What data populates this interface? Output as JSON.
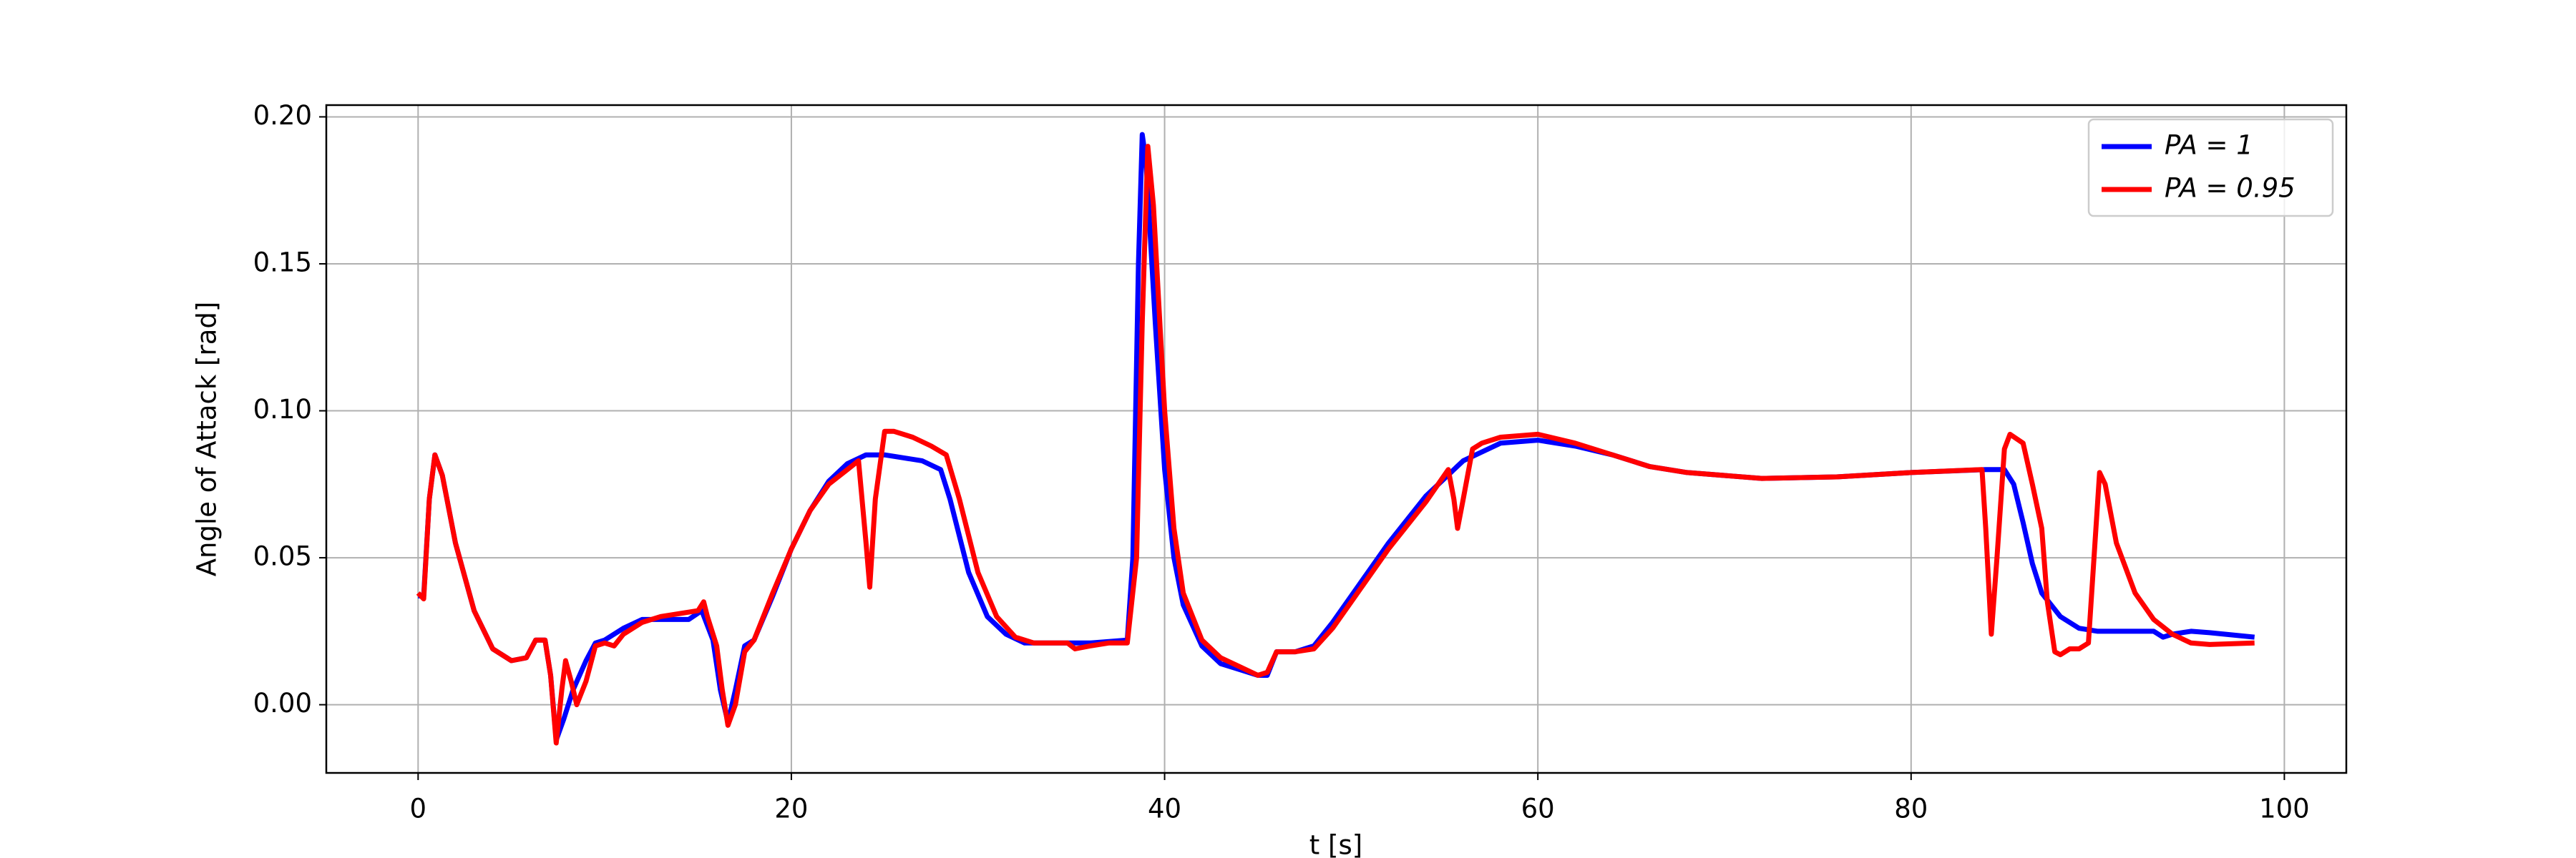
{
  "chart_data": {
    "type": "line",
    "xlabel": "t [s]",
    "ylabel": "Angle of Attack [rad]",
    "xlim": [
      -4.92,
      103.32
    ],
    "ylim": [
      -0.0232,
      0.204
    ],
    "xticks": [
      0,
      20,
      40,
      60,
      80,
      100
    ],
    "yticks": [
      {
        "value": 0,
        "label": "0.00"
      },
      0.05,
      {
        "value": 0.1,
        "label": "0.10"
      },
      0.15,
      {
        "value": 0.2,
        "label": "0.20"
      }
    ],
    "grid": true,
    "legend": "upper right",
    "series": [
      {
        "name": "PA = 1",
        "color": "#0000ff",
        "x": [
          0,
          0.3,
          0.6,
          0.9,
          1.3,
          2,
          3,
          4,
          5,
          5.8,
          6.3,
          6.8,
          7.1,
          7.4,
          7.8,
          8.3,
          9,
          9.5,
          10,
          11,
          12,
          13,
          14.5,
          15.2,
          15.8,
          16.2,
          16.6,
          17,
          17.5,
          18,
          19,
          20,
          21,
          22,
          23,
          24,
          25,
          26,
          27,
          28,
          28.5,
          29.5,
          30.5,
          31.5,
          32.5,
          34,
          36,
          38,
          38.3,
          38.6,
          38.8,
          39,
          39.5,
          40,
          40.5,
          41,
          42,
          43,
          44,
          45,
          45.5,
          46,
          47,
          48,
          49,
          50,
          52,
          54,
          56,
          58,
          60,
          62,
          64,
          66,
          68,
          72,
          76,
          80,
          84,
          85,
          85.5,
          86,
          86.5,
          87,
          88,
          89,
          90,
          92,
          93,
          93.5,
          94,
          95,
          96,
          98.4
        ],
        "values": [
          0.037,
          0.037,
          0.07,
          0.085,
          0.078,
          0.055,
          0.032,
          0.019,
          0.015,
          0.016,
          0.022,
          0.022,
          0.01,
          -0.012,
          -0.005,
          0.005,
          0.015,
          0.021,
          0.022,
          0.026,
          0.029,
          0.029,
          0.029,
          0.032,
          0.022,
          0.005,
          -0.006,
          0.005,
          0.02,
          0.022,
          0.037,
          0.053,
          0.066,
          0.076,
          0.082,
          0.085,
          0.085,
          0.084,
          0.083,
          0.08,
          0.07,
          0.045,
          0.03,
          0.024,
          0.021,
          0.021,
          0.021,
          0.022,
          0.05,
          0.15,
          0.194,
          0.185,
          0.13,
          0.08,
          0.05,
          0.034,
          0.02,
          0.014,
          0.012,
          0.01,
          0.01,
          0.018,
          0.018,
          0.02,
          0.028,
          0.037,
          0.055,
          0.071,
          0.083,
          0.089,
          0.09,
          0.088,
          0.085,
          0.081,
          0.079,
          0.077,
          0.0775,
          0.079,
          0.08,
          0.08,
          0.075,
          0.062,
          0.048,
          0.038,
          0.03,
          0.026,
          0.025,
          0.025,
          0.025,
          0.023,
          0.024,
          0.025,
          0.0245,
          0.023
        ]
      },
      {
        "name": "PA = 0.95",
        "color": "#ff0000",
        "x": [
          0,
          0.3,
          0.6,
          0.9,
          1.3,
          2,
          3,
          4,
          5,
          5.8,
          6.3,
          6.8,
          7.1,
          7.4,
          7.7,
          7.9,
          8.2,
          8.5,
          9,
          9.5,
          10,
          10.5,
          11,
          12,
          13,
          14,
          15,
          15.3,
          15.5,
          16,
          16.3,
          16.6,
          17,
          17.5,
          18,
          19,
          20,
          21,
          22,
          23,
          23.6,
          24,
          24.2,
          24.5,
          25,
          25.5,
          26.5,
          27.5,
          28.3,
          29,
          30,
          31,
          32,
          33,
          34,
          34.8,
          35.2,
          36,
          37,
          38,
          38.5,
          38.8,
          39.1,
          39.4,
          40,
          40.5,
          41,
          42,
          43,
          44,
          45,
          45.5,
          46,
          47,
          48,
          49,
          50,
          52,
          54,
          55.2,
          55.5,
          55.7,
          56,
          56.5,
          57,
          58,
          60,
          62,
          64,
          66,
          68,
          72,
          76,
          80,
          83.8,
          84,
          84.3,
          84.6,
          85,
          85.3,
          86,
          86.5,
          87,
          87.3,
          87.7,
          88,
          88.5,
          89,
          89.5,
          89.8,
          90.1,
          90.4,
          91,
          92,
          93,
          94,
          95,
          96,
          98.4
        ],
        "values": [
          0.038,
          0.036,
          0.07,
          0.085,
          0.078,
          0.055,
          0.032,
          0.019,
          0.015,
          0.016,
          0.022,
          0.022,
          0.01,
          -0.013,
          0.005,
          0.015,
          0.008,
          0.0,
          0.008,
          0.02,
          0.021,
          0.02,
          0.024,
          0.028,
          0.03,
          0.031,
          0.032,
          0.035,
          0.03,
          0.02,
          0.005,
          -0.007,
          0.0,
          0.018,
          0.022,
          0.038,
          0.053,
          0.066,
          0.075,
          0.08,
          0.083,
          0.055,
          0.04,
          0.07,
          0.093,
          0.093,
          0.091,
          0.088,
          0.085,
          0.07,
          0.045,
          0.03,
          0.023,
          0.021,
          0.021,
          0.021,
          0.019,
          0.02,
          0.021,
          0.021,
          0.05,
          0.13,
          0.19,
          0.17,
          0.1,
          0.06,
          0.038,
          0.022,
          0.016,
          0.013,
          0.01,
          0.011,
          0.018,
          0.018,
          0.019,
          0.026,
          0.035,
          0.053,
          0.069,
          0.08,
          0.07,
          0.06,
          0.07,
          0.087,
          0.089,
          0.091,
          0.092,
          0.089,
          0.085,
          0.081,
          0.079,
          0.077,
          0.0775,
          0.079,
          0.08,
          0.06,
          0.024,
          0.05,
          0.087,
          0.092,
          0.089,
          0.075,
          0.06,
          0.035,
          0.018,
          0.017,
          0.019,
          0.019,
          0.021,
          0.05,
          0.079,
          0.075,
          0.055,
          0.038,
          0.029,
          0.024,
          0.021,
          0.0205,
          0.021
        ]
      }
    ]
  }
}
